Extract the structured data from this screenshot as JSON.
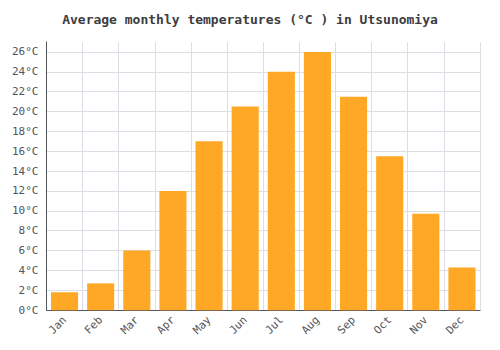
{
  "chart_data": {
    "type": "bar",
    "title": "Average monthly temperatures (°C ) in Utsunomiya",
    "categories": [
      "Jan",
      "Feb",
      "Mar",
      "Apr",
      "May",
      "Jun",
      "Jul",
      "Aug",
      "Sep",
      "Oct",
      "Nov",
      "Dec"
    ],
    "values": [
      1.8,
      2.7,
      6.0,
      12.0,
      17.0,
      20.5,
      24.0,
      26.0,
      21.5,
      15.5,
      9.7,
      4.3
    ],
    "color": "#FFA826",
    "ylim": [
      0,
      27
    ],
    "yticks": [
      {
        "value": 0,
        "label": "0°C"
      },
      {
        "value": 2,
        "label": "2°C"
      },
      {
        "value": 4,
        "label": "4°C"
      },
      {
        "value": 6,
        "label": "6°C"
      },
      {
        "value": 8,
        "label": "8°C"
      },
      {
        "value": 10,
        "label": "10°C"
      },
      {
        "value": 12,
        "label": "12°C"
      },
      {
        "value": 14,
        "label": "14°C"
      },
      {
        "value": 16,
        "label": "16°C"
      },
      {
        "value": 18,
        "label": "18°C"
      },
      {
        "value": 20,
        "label": "20°C"
      },
      {
        "value": 22,
        "label": "22°C"
      },
      {
        "value": 24,
        "label": "24°C"
      },
      {
        "value": 26,
        "label": "26°C"
      }
    ],
    "grid": true
  }
}
